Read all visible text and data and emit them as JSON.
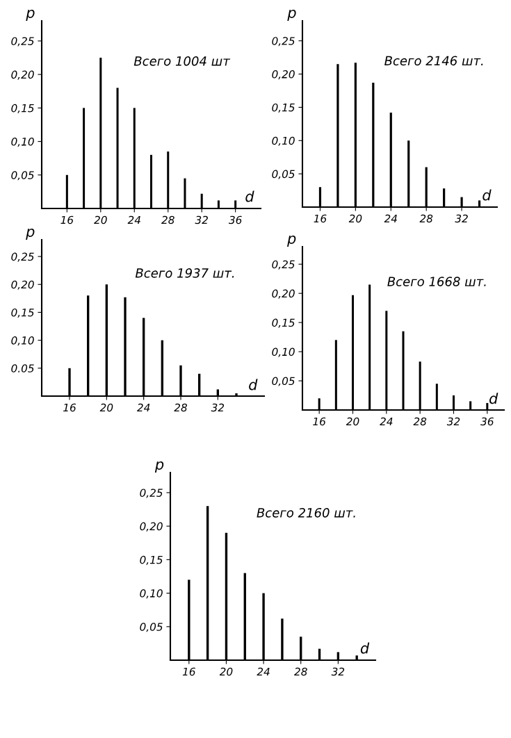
{
  "chart_data": [
    {
      "type": "bar",
      "xlabel": "d",
      "ylabel": "p",
      "annotations": [
        "Всего 1004 шт"
      ],
      "x": [
        16,
        18,
        20,
        22,
        24,
        26,
        28,
        30,
        32,
        34,
        36
      ],
      "values": [
        0.05,
        0.15,
        0.225,
        0.18,
        0.15,
        0.08,
        0.085,
        0.045,
        0.022,
        0.012,
        0.012
      ],
      "color": "#000000",
      "xlim": [
        13,
        39
      ],
      "xticks": [
        16,
        20,
        24,
        28,
        32,
        36
      ],
      "ylim": [
        0,
        0.28
      ],
      "yticks": [
        {
          "value": 0.05,
          "label": "0,05"
        },
        {
          "value": 0.1,
          "label": "0,10"
        },
        {
          "value": 0.15,
          "label": "0,15"
        },
        {
          "value": 0.2,
          "label": "0,20"
        },
        {
          "value": 0.25,
          "label": "0,25"
        }
      ],
      "grid": false
    },
    {
      "type": "bar",
      "xlabel": "d",
      "ylabel": "p",
      "annotations": [
        "Всего 2146 шт."
      ],
      "x": [
        16,
        18,
        20,
        22,
        24,
        26,
        28,
        30,
        32,
        34
      ],
      "values": [
        0.03,
        0.215,
        0.217,
        0.187,
        0.142,
        0.1,
        0.06,
        0.028,
        0.015,
        0.01
      ],
      "color": "#000000",
      "xlim": [
        14,
        36
      ],
      "xticks": [
        16,
        20,
        24,
        28,
        32
      ],
      "ylim": [
        0,
        0.28
      ],
      "yticks": [
        {
          "value": 0.05,
          "label": "0,05"
        },
        {
          "value": 0.1,
          "label": "0,10"
        },
        {
          "value": 0.15,
          "label": "0,15"
        },
        {
          "value": 0.2,
          "label": "0,20"
        },
        {
          "value": 0.25,
          "label": "0,25"
        }
      ],
      "grid": false
    },
    {
      "type": "bar",
      "xlabel": "d",
      "ylabel": "p",
      "annotations": [
        "Всего 1937 шт."
      ],
      "x": [
        16,
        18,
        20,
        22,
        24,
        26,
        28,
        30,
        32,
        34
      ],
      "values": [
        0.05,
        0.18,
        0.2,
        0.177,
        0.14,
        0.1,
        0.055,
        0.04,
        0.012,
        0.005
      ],
      "color": "#000000",
      "xlim": [
        13,
        37
      ],
      "xticks": [
        16,
        20,
        24,
        28,
        32
      ],
      "ylim": [
        0,
        0.28
      ],
      "yticks": [
        {
          "value": 0.05,
          "label": "0.05"
        },
        {
          "value": 0.1,
          "label": "0,10"
        },
        {
          "value": 0.15,
          "label": "0,15"
        },
        {
          "value": 0.2,
          "label": "0,20"
        },
        {
          "value": 0.25,
          "label": "0,25"
        }
      ],
      "grid": false
    },
    {
      "type": "bar",
      "xlabel": "d",
      "ylabel": "p",
      "annotations": [
        "Всего 1668 шт."
      ],
      "x": [
        16,
        18,
        20,
        22,
        24,
        26,
        28,
        30,
        32,
        34,
        36
      ],
      "values": [
        0.02,
        0.12,
        0.197,
        0.215,
        0.17,
        0.135,
        0.083,
        0.045,
        0.025,
        0.015,
        0.012
      ],
      "color": "#000000",
      "xlim": [
        14,
        38
      ],
      "xticks": [
        16,
        20,
        24,
        28,
        32,
        36
      ],
      "ylim": [
        0,
        0.28
      ],
      "yticks": [
        {
          "value": 0.05,
          "label": "0,05"
        },
        {
          "value": 0.1,
          "label": "0,10"
        },
        {
          "value": 0.15,
          "label": "0,15"
        },
        {
          "value": 0.2,
          "label": "0,20"
        },
        {
          "value": 0.25,
          "label": "0,25"
        }
      ],
      "grid": false
    },
    {
      "type": "bar",
      "xlabel": "d",
      "ylabel": "p",
      "annotations": [
        "Всего 2160 шт."
      ],
      "x": [
        16,
        18,
        20,
        22,
        24,
        26,
        28,
        30,
        32,
        34
      ],
      "values": [
        0.12,
        0.23,
        0.19,
        0.13,
        0.1,
        0.062,
        0.035,
        0.017,
        0.012,
        0.007
      ],
      "color": "#000000",
      "xlim": [
        14,
        36
      ],
      "xticks": [
        16,
        20,
        24,
        28,
        32
      ],
      "ylim": [
        0,
        0.28
      ],
      "yticks": [
        {
          "value": 0.05,
          "label": "0,05"
        },
        {
          "value": 0.1,
          "label": "0,10"
        },
        {
          "value": 0.15,
          "label": "0,15"
        },
        {
          "value": 0.2,
          "label": "0,20"
        },
        {
          "value": 0.25,
          "label": "0,25"
        }
      ],
      "grid": false
    }
  ]
}
